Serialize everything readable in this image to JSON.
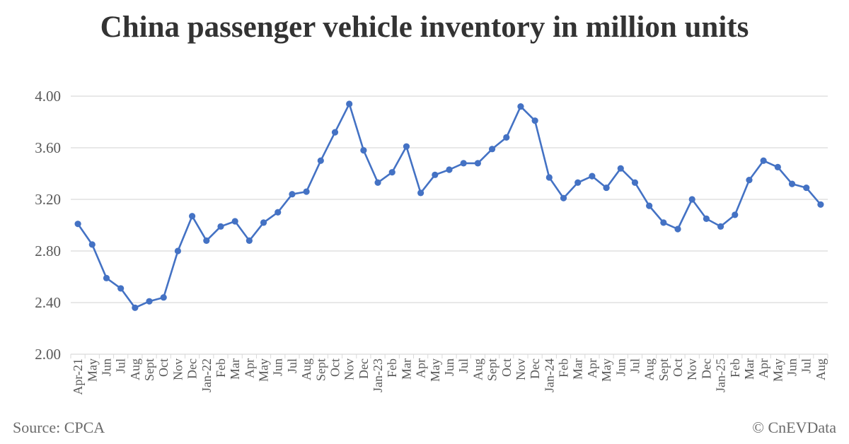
{
  "colors": {
    "line": "#4472C4",
    "grid": "#d9d9d9",
    "text": "#595959",
    "title": "#333333"
  },
  "chart_data": {
    "type": "line",
    "title": "China passenger vehicle inventory in million units",
    "xlabel": "",
    "ylabel": "",
    "ylim": [
      2.0,
      4.0
    ],
    "yticks": [
      "2.00",
      "2.40",
      "2.80",
      "3.20",
      "3.60",
      "4.00"
    ],
    "grid": true,
    "categories": [
      "Apr-21",
      "May",
      "Jun",
      "Jul",
      "Aug",
      "Sept",
      "Oct",
      "Nov",
      "Dec",
      "Jan-22",
      "Feb",
      "Mar",
      "Apr",
      "May",
      "Jun",
      "Jul",
      "Aug",
      "Sept",
      "Oct",
      "Nov",
      "Dec",
      "Jan-23",
      "Feb",
      "Mar",
      "Apr",
      "May",
      "Jun",
      "Jul",
      "Aug",
      "Sept",
      "Oct",
      "Nov",
      "Dec",
      "Jan-24",
      "Feb",
      "Mar",
      "Apr",
      "May",
      "Jun",
      "Jul",
      "Aug",
      "Sept",
      "Oct",
      "Nov",
      "Dec",
      "Jan-25",
      "Feb",
      "Mar",
      "Apr",
      "May",
      "Jun",
      "Jul",
      "Aug"
    ],
    "values": [
      3.01,
      2.85,
      2.59,
      2.51,
      2.36,
      2.41,
      2.44,
      2.8,
      3.07,
      2.88,
      2.99,
      3.03,
      2.88,
      3.02,
      3.1,
      3.24,
      3.26,
      3.5,
      3.72,
      3.94,
      3.58,
      3.33,
      3.41,
      3.61,
      3.25,
      3.39,
      3.43,
      3.48,
      3.48,
      3.59,
      3.68,
      3.92,
      3.81,
      3.37,
      3.21,
      3.33,
      3.38,
      3.29,
      3.44,
      3.33,
      3.15,
      3.02,
      2.97,
      3.2,
      3.05,
      2.99,
      3.08,
      3.35,
      3.5,
      3.45,
      3.32,
      3.29,
      3.16
    ]
  },
  "footer": {
    "source": "Source: CPCA",
    "credit": "© CnEVData"
  }
}
